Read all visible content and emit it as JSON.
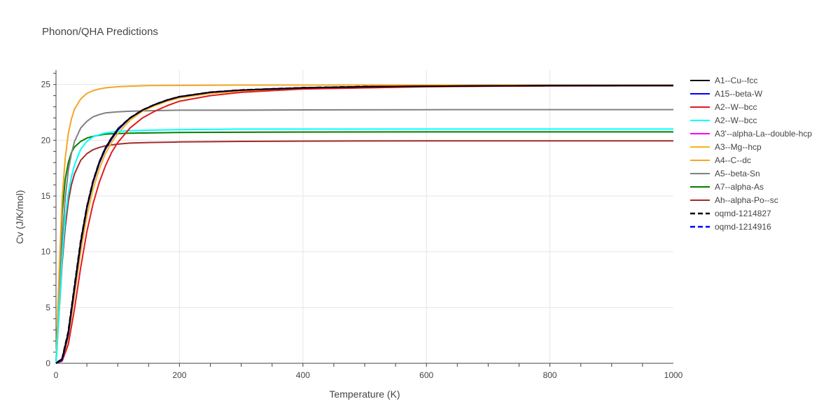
{
  "chart_data": {
    "type": "line",
    "title": "Phonon/QHA Predictions",
    "xlabel": "Temperature (K)",
    "ylabel": "Cv (J/K/mol)",
    "xlim": [
      0,
      1000
    ],
    "ylim": [
      0,
      26.3
    ],
    "x_ticks": [
      0,
      200,
      400,
      600,
      800,
      1000
    ],
    "y_ticks": [
      0,
      5,
      10,
      15,
      20,
      25
    ],
    "x_tick_labels": [
      "0",
      "200",
      "400",
      "600",
      "800",
      "1000"
    ],
    "y_tick_labels": [
      "0",
      "5",
      "10",
      "15",
      "20",
      "25"
    ],
    "grid": true,
    "legend_position": "right",
    "series": [
      {
        "name": "A1--Cu--fcc",
        "color": "#000000",
        "dash": "solid",
        "x": [
          0,
          10,
          20,
          30,
          40,
          50,
          60,
          70,
          80,
          90,
          100,
          120,
          140,
          160,
          180,
          200,
          250,
          300,
          400,
          500,
          600,
          700,
          800,
          900,
          1000
        ],
        "y": [
          0,
          0.4,
          2.8,
          6.9,
          10.9,
          14.0,
          16.3,
          18.0,
          19.3,
          20.2,
          21.0,
          22.0,
          22.7,
          23.2,
          23.6,
          23.9,
          24.3,
          24.5,
          24.7,
          24.8,
          24.85,
          24.88,
          24.9,
          24.9,
          24.9
        ]
      },
      {
        "name": "A15--beta-W",
        "color": "#0000ff",
        "dash": "solid",
        "x": [
          0,
          10,
          20,
          30,
          40,
          50,
          60,
          70,
          80,
          90,
          100,
          120,
          140,
          160,
          180,
          200,
          250,
          300,
          400,
          500,
          600,
          700,
          800,
          900,
          1000
        ],
        "y": [
          0,
          0.3,
          2.6,
          6.7,
          10.7,
          13.9,
          16.2,
          17.9,
          19.2,
          20.1,
          20.9,
          22.0,
          22.7,
          23.2,
          23.6,
          23.9,
          24.3,
          24.5,
          24.7,
          24.8,
          24.85,
          24.88,
          24.9,
          24.9,
          24.9
        ]
      },
      {
        "name": "A2--W--bcc",
        "color": "#e31a1c",
        "dash": "solid",
        "x": [
          0,
          10,
          20,
          30,
          40,
          50,
          60,
          70,
          80,
          90,
          100,
          120,
          140,
          160,
          180,
          200,
          250,
          300,
          400,
          500,
          600,
          700,
          800,
          900,
          1000
        ],
        "y": [
          0,
          0.2,
          1.7,
          4.9,
          8.6,
          11.8,
          14.3,
          16.2,
          17.7,
          18.9,
          19.8,
          21.1,
          22.0,
          22.6,
          23.1,
          23.5,
          24.0,
          24.3,
          24.6,
          24.7,
          24.8,
          24.85,
          24.87,
          24.88,
          24.9
        ]
      },
      {
        "name": "A2--W--bcc",
        "color": "#00ffff",
        "dash": "solid",
        "x": [
          0,
          5,
          10,
          15,
          20,
          25,
          30,
          40,
          50,
          60,
          70,
          80,
          100,
          120,
          150,
          200,
          300,
          400,
          600,
          800,
          1000
        ],
        "y": [
          0,
          4.5,
          9.5,
          13.0,
          15.2,
          16.7,
          17.8,
          19.2,
          19.9,
          20.3,
          20.5,
          20.65,
          20.8,
          20.85,
          20.9,
          20.95,
          21.0,
          21.0,
          21.0,
          21.0,
          21.0
        ]
      },
      {
        "name": "A3'--alpha-La--double-hcp",
        "color": "#ff00ff",
        "dash": "solid",
        "x": [
          0,
          10,
          20,
          30,
          40,
          50,
          60,
          70,
          80,
          90,
          100,
          120,
          140,
          160,
          180,
          200,
          250,
          300,
          400,
          500,
          600,
          700,
          800,
          900,
          1000
        ],
        "y": [
          0,
          0.4,
          2.7,
          6.8,
          10.8,
          14.0,
          16.3,
          18.0,
          19.3,
          20.2,
          21.0,
          22.0,
          22.7,
          23.2,
          23.6,
          23.9,
          24.3,
          24.5,
          24.7,
          24.8,
          24.85,
          24.88,
          24.9,
          24.9,
          24.9
        ]
      },
      {
        "name": "A3--Mg--hcp",
        "color": "#fbb117",
        "dash": "solid",
        "x": [
          0,
          10,
          20,
          30,
          40,
          50,
          60,
          70,
          80,
          90,
          100,
          120,
          140,
          160,
          180,
          200,
          250,
          300,
          400,
          500,
          600,
          700,
          800,
          900,
          1000
        ],
        "y": [
          0,
          0.3,
          2.3,
          6.1,
          10.0,
          13.2,
          15.6,
          17.4,
          18.8,
          19.8,
          20.6,
          21.8,
          22.6,
          23.1,
          23.5,
          23.8,
          24.2,
          24.4,
          24.6,
          24.7,
          24.8,
          24.85,
          24.88,
          24.9,
          24.9
        ]
      },
      {
        "name": "A4--C--dc",
        "color": "#f5a623",
        "dash": "solid",
        "x": [
          0,
          5,
          10,
          15,
          20,
          25,
          30,
          40,
          50,
          60,
          70,
          80,
          100,
          120,
          150,
          200,
          300,
          400,
          600,
          800,
          1000
        ],
        "y": [
          0,
          8.0,
          14.8,
          18.4,
          20.6,
          21.9,
          22.8,
          23.7,
          24.2,
          24.45,
          24.6,
          24.7,
          24.8,
          24.85,
          24.9,
          24.92,
          24.95,
          24.95,
          24.95,
          24.95,
          24.95
        ]
      },
      {
        "name": "A5--beta-Sn",
        "color": "#808080",
        "dash": "solid",
        "x": [
          0,
          5,
          10,
          15,
          20,
          25,
          30,
          40,
          50,
          60,
          70,
          80,
          100,
          120,
          150,
          200,
          300,
          400,
          600,
          800,
          1000
        ],
        "y": [
          0,
          5.5,
          11.0,
          14.8,
          17.3,
          18.8,
          19.9,
          21.1,
          21.7,
          22.1,
          22.3,
          22.45,
          22.55,
          22.6,
          22.65,
          22.7,
          22.7,
          22.72,
          22.74,
          22.75,
          22.75
        ]
      },
      {
        "name": "A7--alpha-As",
        "color": "#008000",
        "dash": "solid",
        "x": [
          0,
          5,
          10,
          15,
          20,
          25,
          30,
          40,
          50,
          60,
          70,
          80,
          100,
          120,
          150,
          200,
          300,
          400,
          600,
          800,
          1000
        ],
        "y": [
          0,
          7.5,
          13.5,
          16.5,
          18.0,
          18.9,
          19.4,
          19.9,
          20.2,
          20.35,
          20.45,
          20.55,
          20.6,
          20.63,
          20.66,
          20.7,
          20.72,
          20.74,
          20.75,
          20.75,
          20.75
        ]
      },
      {
        "name": "Ah--alpha-Po--sc",
        "color": "#a52a2a",
        "dash": "solid",
        "x": [
          0,
          5,
          10,
          15,
          20,
          25,
          30,
          40,
          50,
          60,
          70,
          80,
          100,
          120,
          150,
          200,
          300,
          400,
          600,
          800,
          1000
        ],
        "y": [
          0,
          4.5,
          9.0,
          12.2,
          14.5,
          16.0,
          17.0,
          18.2,
          18.8,
          19.15,
          19.35,
          19.5,
          19.65,
          19.75,
          19.8,
          19.85,
          19.9,
          19.92,
          19.95,
          19.95,
          19.95
        ]
      },
      {
        "name": "oqmd-1214827",
        "color": "#000000",
        "dash": "dash",
        "x": [
          0,
          10,
          20,
          30,
          40,
          50,
          60,
          70,
          80,
          90,
          100,
          120,
          140,
          160,
          180,
          200,
          250,
          300,
          400,
          500,
          600,
          700,
          800,
          900,
          1000
        ],
        "y": [
          0,
          0.4,
          2.8,
          6.9,
          10.9,
          14.0,
          16.3,
          18.0,
          19.3,
          20.2,
          21.0,
          22.0,
          22.7,
          23.2,
          23.6,
          23.9,
          24.3,
          24.5,
          24.7,
          24.8,
          24.85,
          24.88,
          24.9,
          24.9,
          24.9
        ]
      },
      {
        "name": "oqmd-1214916",
        "color": "#0000ff",
        "dash": "dash",
        "x": [
          0,
          10,
          20,
          30,
          40,
          50,
          60,
          70,
          80,
          90,
          100,
          120,
          140,
          160,
          180,
          200,
          250,
          300,
          400,
          500,
          600,
          700,
          800,
          900,
          1000
        ],
        "y": [
          0,
          0.4,
          2.8,
          6.9,
          10.9,
          14.0,
          16.3,
          18.0,
          19.3,
          20.2,
          21.0,
          22.0,
          22.7,
          23.2,
          23.6,
          23.9,
          24.3,
          24.5,
          24.7,
          24.8,
          24.85,
          24.88,
          24.9,
          24.9,
          24.9
        ]
      }
    ]
  }
}
